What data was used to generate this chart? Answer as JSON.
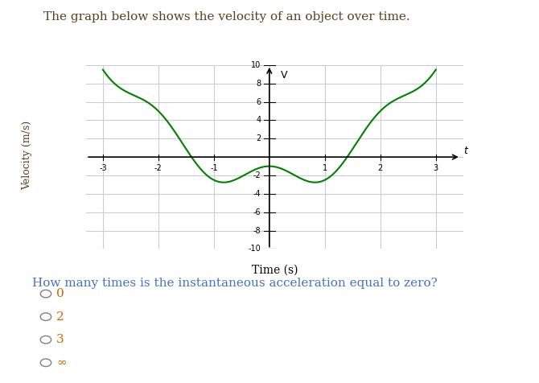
{
  "title": "The graph below shows the velocity of an object over time.",
  "question": "How many times is the instantaneous acceleration equal to zero?",
  "options": [
    "0",
    "2",
    "3",
    "∞"
  ],
  "xlabel": "Time (s)",
  "ylabel": "Velocity (m/s)",
  "xlim": [
    -3.3,
    3.5
  ],
  "ylim": [
    -10,
    10
  ],
  "xticks": [
    -3,
    -2,
    -1,
    1,
    2,
    3
  ],
  "yticks": [
    -10,
    -8,
    -6,
    -4,
    -2,
    2,
    4,
    6,
    8,
    10
  ],
  "curve_color": "#008000",
  "grid_color": "#cccccc",
  "bg_color": "#ffffff",
  "title_color": "#5a3e1b",
  "question_color": "#4472c4",
  "option_color": "#cc6600",
  "ylabel_color": "#5a3e1b"
}
